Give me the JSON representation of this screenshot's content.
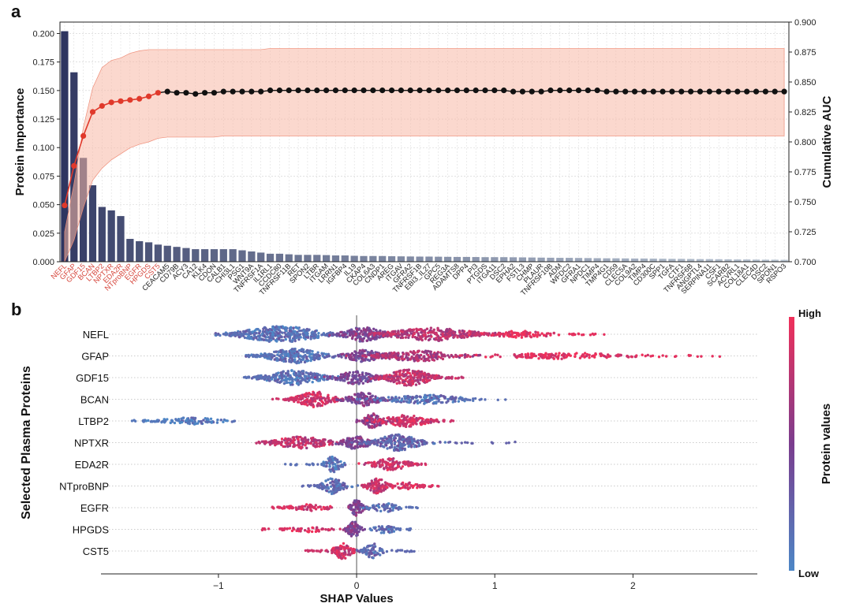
{
  "panel_labels": {
    "a": "a",
    "b": "b"
  },
  "colors": {
    "bar_dark": "#2e3560",
    "bar_light": "#b9c5d2",
    "auc_red": "#e0392b",
    "auc_black": "#111111",
    "band": "#f7b8a6",
    "band_edge": "#ef8e79",
    "low": "#4d87c6",
    "mid": "#7b3d8e",
    "high": "#f0305a",
    "red_label": "#d6453b"
  },
  "chart_data": [
    {
      "type": "bar",
      "title": "",
      "xlabel": "",
      "ylabel": "Protein Importance",
      "y2label": "Cumulative AUC",
      "ylim": [
        0,
        0.21
      ],
      "y2lim": [
        0.7,
        0.9
      ],
      "yticks": [
        "0.000",
        "0.025",
        "0.050",
        "0.075",
        "0.100",
        "0.125",
        "0.150",
        "0.175",
        "0.200"
      ],
      "y2ticks": [
        "0.700",
        "0.725",
        "0.750",
        "0.775",
        "0.800",
        "0.825",
        "0.850",
        "0.875",
        "0.900"
      ],
      "grid": true,
      "categories": [
        "NEFL",
        "GFAP",
        "GDF15",
        "BCAN",
        "LTBP2",
        "NPTXR",
        "EDA2R",
        "NTproBNP",
        "EGFR",
        "HPGDS",
        "CST5",
        "CEACAM5",
        "CD79B",
        "ACY3",
        "CA12",
        "KLK4",
        "CDON",
        "CALB1",
        "CHI3L1",
        "PSG1",
        "WNT9A",
        "TNFRSF1A",
        "IL1RL1",
        "CCDC80",
        "TNFRSF11B",
        "RET",
        "SPON2",
        "LTBR",
        "ITGAM",
        "LRRN1",
        "IGFBP4",
        "IL19",
        "CKAP4",
        "COL6A3",
        "CNDP1",
        "AREG",
        "ITGAV",
        "GFRA2",
        "TNFRSF1B",
        "EBI3_IL27",
        "GPC5",
        "REG3A",
        "ADAMTS8",
        "DPP4",
        "PI3",
        "PTGDS",
        "ITGA11",
        "DSC2",
        "EPHA2",
        "FSTL3",
        "CHMP",
        "PLAUR",
        "TNFRSF10B",
        "ADM",
        "WFDC2",
        "GFRA1",
        "NPDC1",
        "TIMP4",
        "TMP4G1",
        "CD59",
        "CLEC5A",
        "COL9A2",
        "TIMP4",
        "CD300C",
        "SPP1",
        "TGFA",
        "CTF1",
        "TNFRSF6B",
        "ANGPTL4",
        "SERPINA11",
        "CSF1",
        "SCARB2",
        "ACVRL1",
        "COL18A1",
        "CLEC4D",
        "DSC2",
        "SPON1",
        "RSPO3"
      ],
      "highlighted_count": 11,
      "values": [
        0.202,
        0.166,
        0.091,
        0.067,
        0.048,
        0.045,
        0.04,
        0.02,
        0.018,
        0.017,
        0.015,
        0.014,
        0.013,
        0.012,
        0.011,
        0.011,
        0.011,
        0.011,
        0.011,
        0.01,
        0.009,
        0.008,
        0.007,
        0.007,
        0.0065,
        0.006,
        0.006,
        0.006,
        0.0058,
        0.0055,
        0.0055,
        0.0052,
        0.005,
        0.005,
        0.005,
        0.0048,
        0.0047,
        0.0046,
        0.0045,
        0.0045,
        0.0044,
        0.0043,
        0.0042,
        0.0042,
        0.0041,
        0.004,
        0.004,
        0.004,
        0.0039,
        0.0038,
        0.0037,
        0.0036,
        0.0035,
        0.0034,
        0.0034,
        0.0033,
        0.0032,
        0.0031,
        0.003,
        0.003,
        0.0029,
        0.0028,
        0.0028,
        0.0027,
        0.0026,
        0.0025,
        0.0025,
        0.0024,
        0.0023,
        0.0023,
        0.0022,
        0.0021,
        0.002,
        0.002,
        0.0019,
        0.0018,
        0.0018,
        0.0017
      ],
      "cumulative_auc": [
        0.747,
        0.78,
        0.805,
        0.825,
        0.83,
        0.833,
        0.834,
        0.835,
        0.836,
        0.838,
        0.841,
        0.842,
        0.841,
        0.841,
        0.84,
        0.841,
        0.841,
        0.842,
        0.842,
        0.842,
        0.842,
        0.842,
        0.843,
        0.843,
        0.843,
        0.843,
        0.843,
        0.843,
        0.843,
        0.843,
        0.843,
        0.843,
        0.843,
        0.843,
        0.843,
        0.843,
        0.843,
        0.843,
        0.843,
        0.843,
        0.843,
        0.843,
        0.843,
        0.843,
        0.843,
        0.843,
        0.843,
        0.843,
        0.842,
        0.842,
        0.842,
        0.842,
        0.843,
        0.843,
        0.843,
        0.843,
        0.843,
        0.843,
        0.842,
        0.842,
        0.842,
        0.842,
        0.842,
        0.842,
        0.842,
        0.842,
        0.842,
        0.842,
        0.842,
        0.842,
        0.842,
        0.842,
        0.842,
        0.842,
        0.842,
        0.842,
        0.842,
        0.842
      ],
      "auc_band_upper": [
        0.725,
        0.765,
        0.812,
        0.845,
        0.862,
        0.868,
        0.87,
        0.874,
        0.876,
        0.877,
        0.877,
        0.877,
        0.877,
        0.877,
        0.877,
        0.877,
        0.877,
        0.877,
        0.877,
        0.877,
        0.877,
        0.877,
        0.878,
        0.878,
        0.878,
        0.878,
        0.878,
        0.878,
        0.878,
        0.878,
        0.878,
        0.878,
        0.878,
        0.878,
        0.878,
        0.878,
        0.878,
        0.878,
        0.878,
        0.878,
        0.878,
        0.878,
        0.878,
        0.878,
        0.878,
        0.878,
        0.878,
        0.878,
        0.878,
        0.878,
        0.878,
        0.878,
        0.878,
        0.878,
        0.878,
        0.878,
        0.878,
        0.878,
        0.878,
        0.878,
        0.878,
        0.878,
        0.878,
        0.878,
        0.878,
        0.878,
        0.878,
        0.878,
        0.878,
        0.878,
        0.878,
        0.878,
        0.878,
        0.878,
        0.878,
        0.878,
        0.878,
        0.878
      ],
      "auc_band_lower": [
        0.7,
        0.718,
        0.745,
        0.768,
        0.778,
        0.785,
        0.79,
        0.795,
        0.798,
        0.8,
        0.803,
        0.804,
        0.804,
        0.804,
        0.804,
        0.804,
        0.804,
        0.805,
        0.805,
        0.805,
        0.805,
        0.805,
        0.805,
        0.805,
        0.805,
        0.805,
        0.805,
        0.805,
        0.805,
        0.805,
        0.805,
        0.805,
        0.805,
        0.805,
        0.805,
        0.805,
        0.805,
        0.805,
        0.805,
        0.805,
        0.805,
        0.805,
        0.805,
        0.805,
        0.805,
        0.805,
        0.805,
        0.805,
        0.805,
        0.805,
        0.805,
        0.805,
        0.805,
        0.805,
        0.805,
        0.805,
        0.805,
        0.805,
        0.805,
        0.805,
        0.805,
        0.805,
        0.805,
        0.805,
        0.805,
        0.805,
        0.805,
        0.805,
        0.805,
        0.805,
        0.805,
        0.805,
        0.805,
        0.805,
        0.805,
        0.805,
        0.805,
        0.805
      ]
    },
    {
      "type": "scatter",
      "title": "",
      "xlabel": "SHAP Values",
      "ylabel": "Selected Plasma Proteins",
      "xlim": [
        -1.85,
        2.9
      ],
      "xticks": [
        -1,
        0,
        1,
        2
      ],
      "xtick_labels": [
        "−1",
        "0",
        "1",
        "2"
      ],
      "colorbar_label": "Protein values",
      "colorbar_high": "High",
      "colorbar_low": "Low",
      "proteins": [
        {
          "name": "NEFL",
          "min": -1.02,
          "max": 1.8,
          "clusters": [
            {
              "c": -0.55,
              "w": 0.45,
              "h": 1.0,
              "v": 0.15
            },
            {
              "c": 0.05,
              "w": 0.22,
              "h": 0.9,
              "v": 0.45
            },
            {
              "c": 0.55,
              "w": 0.45,
              "h": 0.8,
              "v": 0.75
            },
            {
              "c": 1.2,
              "w": 0.3,
              "h": 0.35,
              "v": 0.95
            }
          ]
        },
        {
          "name": "GFAP",
          "min": -0.8,
          "max": 2.66,
          "clusters": [
            {
              "c": -0.45,
              "w": 0.3,
              "h": 0.9,
              "v": 0.15
            },
            {
              "c": 0.05,
              "w": 0.2,
              "h": 0.7,
              "v": 0.45
            },
            {
              "c": 0.45,
              "w": 0.4,
              "h": 0.6,
              "v": 0.7
            },
            {
              "c": 1.5,
              "w": 0.6,
              "h": 0.3,
              "v": 0.95
            }
          ]
        },
        {
          "name": "GDF15",
          "min": -0.86,
          "max": 0.82,
          "clusters": [
            {
              "c": -0.45,
              "w": 0.3,
              "h": 0.9,
              "v": 0.15
            },
            {
              "c": 0.0,
              "w": 0.2,
              "h": 0.8,
              "v": 0.45
            },
            {
              "c": 0.38,
              "w": 0.25,
              "h": 1.0,
              "v": 0.8
            }
          ]
        },
        {
          "name": "BCAN",
          "min": -0.62,
          "max": 1.1,
          "clusters": [
            {
              "c": -0.3,
              "w": 0.2,
              "h": 1.0,
              "v": 0.85
            },
            {
              "c": 0.05,
              "w": 0.18,
              "h": 0.8,
              "v": 0.5
            },
            {
              "c": 0.5,
              "w": 0.4,
              "h": 0.5,
              "v": 0.15
            }
          ]
        },
        {
          "name": "LTBP2",
          "min": -1.65,
          "max": 0.72,
          "clusters": [
            {
              "c": -1.2,
              "w": 0.3,
              "h": 0.35,
              "v": 0.1
            },
            {
              "c": 0.12,
              "w": 0.1,
              "h": 1.0,
              "v": 0.6
            },
            {
              "c": 0.35,
              "w": 0.25,
              "h": 0.7,
              "v": 0.85
            }
          ]
        },
        {
          "name": "NPTXR",
          "min": -0.73,
          "max": 1.16,
          "clusters": [
            {
              "c": -0.4,
              "w": 0.3,
              "h": 0.7,
              "v": 0.8
            },
            {
              "c": 0.0,
              "w": 0.15,
              "h": 0.8,
              "v": 0.5
            },
            {
              "c": 0.3,
              "w": 0.25,
              "h": 1.0,
              "v": 0.25
            }
          ]
        },
        {
          "name": "EDA2R",
          "min": -0.52,
          "max": 0.5,
          "clusters": [
            {
              "c": -0.17,
              "w": 0.09,
              "h": 1.0,
              "v": 0.15
            },
            {
              "c": 0.25,
              "w": 0.2,
              "h": 0.7,
              "v": 0.85
            }
          ]
        },
        {
          "name": "NTproBNP",
          "min": -0.4,
          "max": 0.6,
          "clusters": [
            {
              "c": -0.17,
              "w": 0.12,
              "h": 1.0,
              "v": 0.2
            },
            {
              "c": 0.15,
              "w": 0.1,
              "h": 1.0,
              "v": 0.8
            },
            {
              "c": 0.35,
              "w": 0.15,
              "h": 0.4,
              "v": 0.9
            }
          ]
        },
        {
          "name": "EGFR",
          "min": -0.62,
          "max": 0.45,
          "clusters": [
            {
              "c": -0.35,
              "w": 0.2,
              "h": 0.35,
              "v": 0.9
            },
            {
              "c": 0.0,
              "w": 0.07,
              "h": 1.0,
              "v": 0.5
            },
            {
              "c": 0.2,
              "w": 0.15,
              "h": 0.5,
              "v": 0.15
            }
          ]
        },
        {
          "name": "HPGDS",
          "min": -0.7,
          "max": 0.4,
          "clusters": [
            {
              "c": -0.35,
              "w": 0.2,
              "h": 0.25,
              "v": 0.9
            },
            {
              "c": -0.02,
              "w": 0.07,
              "h": 1.0,
              "v": 0.5
            },
            {
              "c": 0.2,
              "w": 0.12,
              "h": 0.45,
              "v": 0.15
            }
          ]
        },
        {
          "name": "CST5",
          "min": -0.4,
          "max": 0.45,
          "clusters": [
            {
              "c": -0.1,
              "w": 0.1,
              "h": 1.0,
              "v": 0.85
            },
            {
              "c": 0.12,
              "w": 0.1,
              "h": 0.9,
              "v": 0.2
            }
          ]
        }
      ]
    }
  ]
}
